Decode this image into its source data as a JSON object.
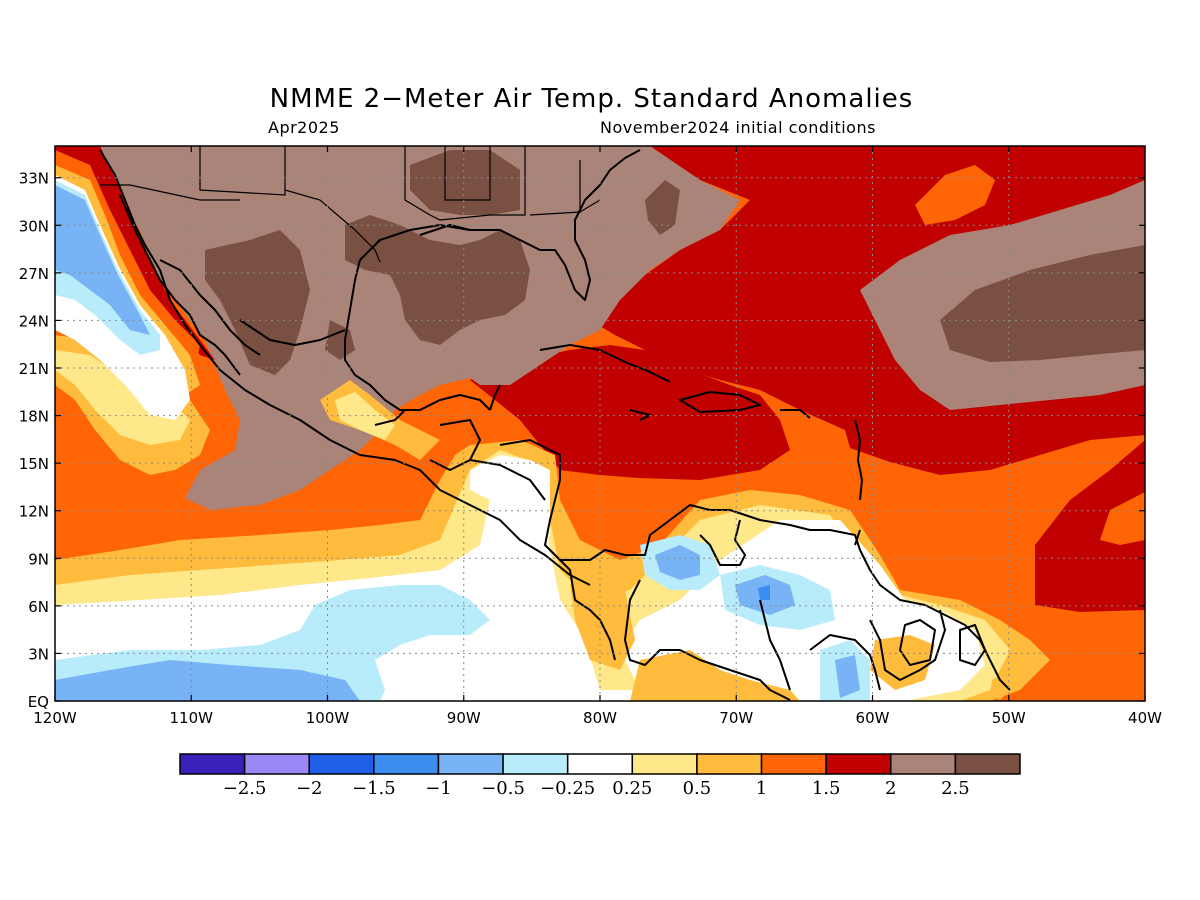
{
  "title": "NMME 2−Meter Air Temp. Standard Anomalies",
  "subtitle_left": "Apr2025",
  "subtitle_right": "November2024 initial conditions",
  "map": {
    "lon_range": [
      -120,
      -40
    ],
    "lat_range": [
      0,
      35
    ],
    "lon_ticks": [
      {
        "value": -120,
        "label": "120W"
      },
      {
        "value": -110,
        "label": "110W"
      },
      {
        "value": -100,
        "label": "100W"
      },
      {
        "value": -90,
        "label": "90W"
      },
      {
        "value": -80,
        "label": "80W"
      },
      {
        "value": -70,
        "label": "70W"
      },
      {
        "value": -60,
        "label": "60W"
      },
      {
        "value": -50,
        "label": "50W"
      },
      {
        "value": -40,
        "label": "40W"
      }
    ],
    "lat_ticks": [
      {
        "value": 0,
        "label": "EQ"
      },
      {
        "value": 3,
        "label": "3N"
      },
      {
        "value": 6,
        "label": "6N"
      },
      {
        "value": 9,
        "label": "9N"
      },
      {
        "value": 12,
        "label": "12N"
      },
      {
        "value": 15,
        "label": "15N"
      },
      {
        "value": 18,
        "label": "18N"
      },
      {
        "value": 21,
        "label": "21N"
      },
      {
        "value": 24,
        "label": "24N"
      },
      {
        "value": 27,
        "label": "27N"
      },
      {
        "value": 30,
        "label": "30N"
      },
      {
        "value": 33,
        "label": "33N"
      }
    ],
    "grid": "dotted"
  },
  "colorbar": {
    "colors": [
      "#3a1fb8",
      "#9b87f5",
      "#1f5fe8",
      "#3c8df0",
      "#78b4f5",
      "#b8ecfa",
      "#ffffff",
      "#ffe88a",
      "#ffbb3c",
      "#ff6405",
      "#c10000",
      "#aa8479",
      "#7a5043"
    ],
    "labels": [
      "−2.5",
      "−2",
      "−1.5",
      "−1",
      "−0.5",
      "−0.25",
      "0.25",
      "0.5",
      "1",
      "1.5",
      "2",
      "2.5"
    ]
  }
}
